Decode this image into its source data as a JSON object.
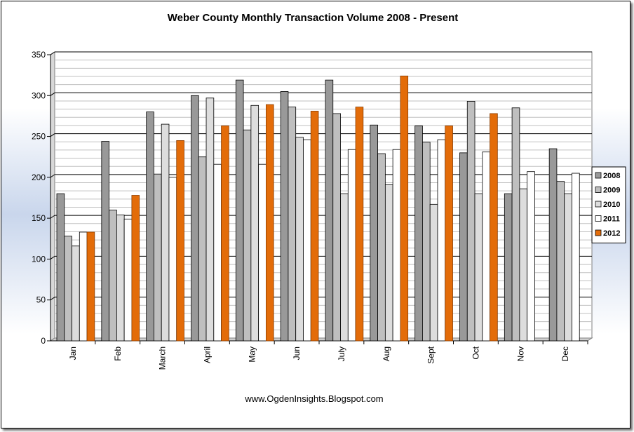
{
  "chart_data": {
    "type": "bar",
    "title": "Weber County Monthly Transaction Volume 2008 - Present",
    "xlabel": "",
    "ylabel": "",
    "ylim": [
      0,
      350
    ],
    "yticks": [
      0,
      50,
      100,
      150,
      200,
      250,
      300,
      350
    ],
    "categories": [
      "Jan",
      "Feb",
      "March",
      "April",
      "May",
      "Jun",
      "July",
      "Aug",
      "Sept",
      "Oct",
      "Nov",
      "Dec"
    ],
    "series": [
      {
        "name": "2008",
        "color": "#999999",
        "values": [
          180,
          244,
          280,
          300,
          319,
          305,
          319,
          264,
          263,
          230,
          180,
          235
        ]
      },
      {
        "name": "2009",
        "color": "#bfbfbf",
        "values": [
          128,
          160,
          204,
          225,
          258,
          286,
          278,
          229,
          243,
          293,
          285,
          195
        ]
      },
      {
        "name": "2010",
        "color": "#dddddd",
        "values": [
          116,
          154,
          265,
          297,
          288,
          249,
          180,
          191,
          167,
          180,
          186,
          180
        ]
      },
      {
        "name": "2011",
        "color": "#ffffff",
        "values": [
          133,
          149,
          200,
          216,
          216,
          246,
          234,
          234,
          246,
          231,
          207,
          205
        ]
      },
      {
        "name": "2012",
        "color": "#e36c09",
        "values": [
          133,
          178,
          245,
          263,
          289,
          281,
          286,
          324,
          263,
          278,
          null,
          null
        ]
      }
    ],
    "grid": true,
    "legend_position": "right",
    "footer": "www.OgdenInsights.Blogspot.com"
  }
}
